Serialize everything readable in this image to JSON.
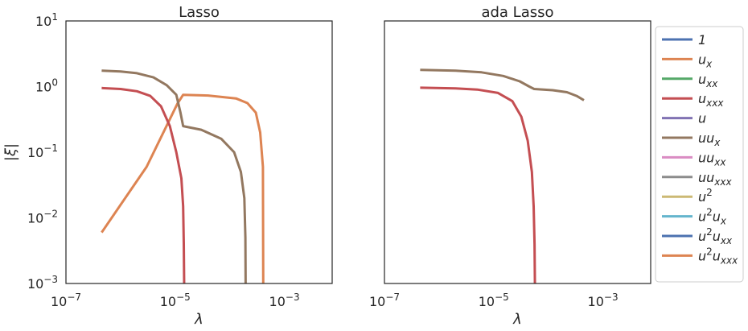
{
  "chart_data": [
    {
      "type": "line",
      "title": "Lasso",
      "xlabel": "λ",
      "ylabel": "|ξ|",
      "xscale": "log",
      "yscale": "log",
      "xlim": [
        1e-07,
        0.0075
      ],
      "ylim": [
        0.001,
        10
      ],
      "xticks": [
        {
          "value": 1e-07,
          "base": "10",
          "exp": "−7"
        },
        {
          "value": 1e-05,
          "base": "10",
          "exp": "−5"
        },
        {
          "value": 0.001,
          "base": "10",
          "exp": "−3"
        }
      ],
      "yticks": [
        {
          "value": 10,
          "base": "10",
          "exp": "1"
        },
        {
          "value": 1,
          "base": "10",
          "exp": "0"
        },
        {
          "value": 0.1,
          "base": "10",
          "exp": "−1"
        },
        {
          "value": 0.01,
          "base": "10",
          "exp": "−2"
        },
        {
          "value": 0.001,
          "base": "10",
          "exp": "−3"
        }
      ],
      "grid": false,
      "series": [
        {
          "name": "u_x",
          "color": "#dd8452",
          "x": [
            4.5e-07,
            3e-06,
            1.1e-05,
            1.4e-05,
            4e-05,
            0.00013,
            0.00021,
            0.0003,
            0.00036,
            0.000405,
            0.00041
          ],
          "y": [
            0.006,
            0.06,
            0.55,
            0.75,
            0.73,
            0.66,
            0.56,
            0.4,
            0.2,
            0.06,
            0.0009
          ]
        },
        {
          "name": "u u_x",
          "color": "#937860",
          "x": [
            4.5e-07,
            1e-06,
            2e-06,
            4e-06,
            7e-06,
            1.05e-05,
            1.25e-05,
            1.4e-05,
            3e-05,
            7e-05,
            0.00012,
            0.00016,
            0.000185,
            0.000193,
            0.000195
          ],
          "y": [
            1.75,
            1.7,
            1.6,
            1.38,
            1.05,
            0.75,
            0.4,
            0.25,
            0.22,
            0.16,
            0.1,
            0.05,
            0.02,
            0.005,
            0.0009
          ]
        },
        {
          "name": "u_xxx",
          "color": "#c44e52",
          "x": [
            4.5e-07,
            1e-06,
            2e-06,
            3.5e-06,
            5.5e-06,
            8e-06,
            1.05e-05,
            1.3e-05,
            1.4e-05,
            1.44e-05,
            1.46e-05
          ],
          "y": [
            0.95,
            0.92,
            0.85,
            0.72,
            0.5,
            0.25,
            0.1,
            0.04,
            0.015,
            0.004,
            0.0009
          ]
        }
      ]
    },
    {
      "type": "line",
      "title": "ada Lasso",
      "xlabel": "λ",
      "ylabel": "",
      "xscale": "log",
      "yscale": "log",
      "xlim": [
        1e-07,
        0.0075
      ],
      "ylim": [
        0.001,
        10
      ],
      "xticks": [
        {
          "value": 1e-07,
          "base": "10",
          "exp": "−7"
        },
        {
          "value": 1e-05,
          "base": "10",
          "exp": "−5"
        },
        {
          "value": 0.001,
          "base": "10",
          "exp": "−3"
        }
      ],
      "grid": false,
      "series": [
        {
          "name": "u u_x",
          "color": "#937860",
          "x": [
            4.5e-07,
            2e-06,
            6e-06,
            1.5e-05,
            3e-05,
            4.5e-05,
            5.5e-05,
            0.00012,
            0.00022,
            0.00033,
            0.00045
          ],
          "y": [
            1.8,
            1.75,
            1.65,
            1.45,
            1.2,
            1.0,
            0.92,
            0.88,
            0.82,
            0.72,
            0.62
          ]
        },
        {
          "name": "u_xxx",
          "color": "#c44e52",
          "x": [
            4.5e-07,
            2e-06,
            5e-06,
            1.2e-05,
            2.2e-05,
            3.2e-05,
            4.2e-05,
            5e-05,
            5.4e-05,
            5.6e-05,
            5.7e-05
          ],
          "y": [
            0.96,
            0.94,
            0.9,
            0.8,
            0.6,
            0.35,
            0.15,
            0.05,
            0.015,
            0.004,
            0.0009
          ]
        }
      ]
    }
  ],
  "legend": {
    "placement": "outside-right",
    "entries": [
      {
        "base": "1",
        "sub": "",
        "color": "#4c72b0"
      },
      {
        "base": "u",
        "sub": "x",
        "color": "#dd8452"
      },
      {
        "base": "u",
        "sub": "xx",
        "color": "#55a868"
      },
      {
        "base": "u",
        "sub": "xxx",
        "color": "#c44e52"
      },
      {
        "base": "u",
        "sub": "",
        "color": "#8172b3"
      },
      {
        "base": "uu",
        "sub": "x",
        "color": "#937860"
      },
      {
        "base": "uu",
        "sub": "xx",
        "color": "#da8bc3"
      },
      {
        "base": "uu",
        "sub": "xxx",
        "color": "#8c8c8c"
      },
      {
        "base": "u",
        "sup": "2",
        "sub": "",
        "color": "#ccb974"
      },
      {
        "base": "u",
        "sup": "2",
        "base2": "u",
        "sub": "x",
        "color": "#64b5cd"
      },
      {
        "base": "u",
        "sup": "2",
        "base2": "u",
        "sub": "xx",
        "color": "#4c72b0"
      },
      {
        "base": "u",
        "sup": "2",
        "base2": "u",
        "sub": "xxx",
        "color": "#dd8452"
      }
    ]
  }
}
